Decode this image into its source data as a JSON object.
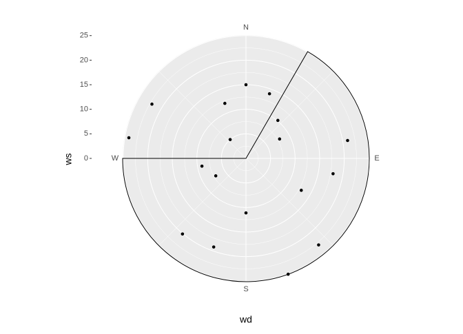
{
  "chart_data": {
    "type": "polar-scatter",
    "x_label": "wd",
    "y_label": "ws",
    "x": [
      0,
      20,
      339,
      40,
      60,
      320,
      300,
      280,
      80,
      100,
      120,
      140,
      160,
      180,
      200,
      220,
      240,
      260
    ],
    "values": [
      15.0,
      14.0,
      12.0,
      10.1,
      7.9,
      5.0,
      22.1,
      24.2,
      21.0,
      18.0,
      13.0,
      23.0,
      25.1,
      11.1,
      19.2,
      20.1,
      7.1,
      9.1
    ],
    "color": "#000000",
    "xlim": [
      0,
      360
    ],
    "xticks": [
      {
        "value": 0,
        "label": "N"
      },
      {
        "value": 90,
        "label": "E"
      },
      {
        "value": 180,
        "label": "S"
      },
      {
        "value": 270,
        "label": "W"
      }
    ],
    "ylim": [
      0,
      25.1
    ],
    "yticks": [
      0,
      5,
      10,
      15,
      20,
      25
    ],
    "highlight_sector": {
      "x_from": 30,
      "x_to": 270
    },
    "grid": true
  }
}
